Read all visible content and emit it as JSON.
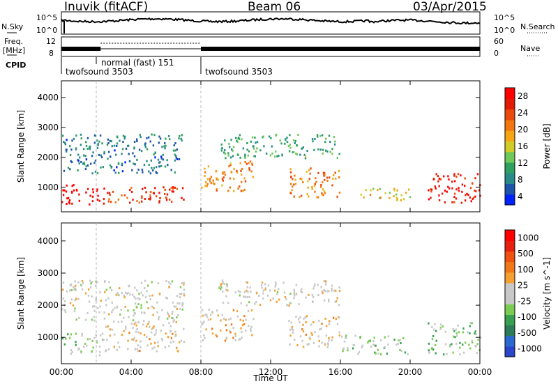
{
  "header": {
    "station": "Inuvik (fitACF)",
    "beam": "Beam 06",
    "date": "03/Apr/2015"
  },
  "params": {
    "nsky_label": "N.Sky",
    "nsearch_label": "N.Search",
    "nsky_ticks": [
      "10^5",
      "10^0"
    ],
    "nsearch_ticks": [
      "10^5",
      "10^0"
    ],
    "freq_label": "Freq.",
    "freq_unit": "[MHz]",
    "freq_ticks": [
      "12",
      "8"
    ],
    "nave_label": "Nave",
    "nave_ticks": [
      "60",
      "0"
    ],
    "cpid_label": "CPID",
    "cpid_segments": [
      {
        "name": "twofsound 3503",
        "start_hour": 0.0
      },
      {
        "name": "normal (fast) 151",
        "start_hour": 1.85
      },
      {
        "name": "twofsound 3503",
        "start_hour": 7.85
      }
    ]
  },
  "colors": {
    "power": [
      "#0022ff",
      "#1c55aa",
      "#2a8a8a",
      "#2ea060",
      "#6fc85a",
      "#d2cc2a",
      "#f6a515",
      "#f27710",
      "#ec4a0a",
      "#e31a08",
      "#ff0000"
    ],
    "velocity": [
      "#2a46c8",
      "#2a6ad0",
      "#2e7b5a",
      "#38a050",
      "#7acd52",
      "#c8c8c8",
      "#c8c8c8",
      "#f5a030",
      "#f07818",
      "#f05010",
      "#e82010",
      "#ff0000"
    ]
  },
  "chart_data": [
    {
      "type": "heatmap",
      "title": "Power",
      "ylabel": "Slant Range [km]",
      "xlabel": "",
      "x_unit": "hour UT",
      "xlim": [
        0,
        24
      ],
      "ylim": [
        180,
        4560
      ],
      "xticks": [
        "00:00",
        "04:00",
        "08:00",
        "12:00",
        "16:00",
        "20:00",
        "00:00"
      ],
      "yticks": [
        "1000",
        "2000",
        "3000",
        "4000"
      ],
      "colorbar": {
        "label": "Power [dB]",
        "range": [
          0,
          30
        ],
        "ticks": [
          "28",
          "24",
          "20",
          "16",
          "12",
          "8",
          "4"
        ]
      },
      "scatter_bands": [
        {
          "x": [
            0,
            2.5
          ],
          "y": [
            450,
            1150
          ],
          "value": 28
        },
        {
          "x": [
            2.5,
            7
          ],
          "y": [
            500,
            1100
          ],
          "value": 24
        },
        {
          "x": [
            8,
            11
          ],
          "y": [
            900,
            1900
          ],
          "value": 20
        },
        {
          "x": [
            13,
            16
          ],
          "y": [
            700,
            1700
          ],
          "value": 20
        },
        {
          "x": [
            17,
            20
          ],
          "y": [
            600,
            1000
          ],
          "value": 16
        },
        {
          "x": [
            21,
            24
          ],
          "y": [
            500,
            1500
          ],
          "value": 26
        },
        {
          "x": [
            0,
            7
          ],
          "y": [
            1500,
            2800
          ],
          "value": 6
        },
        {
          "x": [
            9,
            16
          ],
          "y": [
            2000,
            2800
          ],
          "value": 10
        }
      ]
    },
    {
      "type": "heatmap",
      "title": "Velocity",
      "ylabel": "Slant Range [km]",
      "xlabel": "Time UT",
      "x_unit": "hour UT",
      "xlim": [
        0,
        24
      ],
      "ylim": [
        180,
        4560
      ],
      "xticks": [
        "00:00",
        "04:00",
        "08:00",
        "12:00",
        "16:00",
        "20:00",
        "00:00"
      ],
      "yticks": [
        "1000",
        "2000",
        "3000",
        "4000"
      ],
      "colorbar": {
        "label": "Velocity [m s^-1]",
        "range": [
          -1200,
          1200
        ],
        "ticks": [
          "1000",
          "500",
          "100",
          "25",
          "-25",
          "-100",
          "-500",
          "-1000"
        ]
      },
      "scatter_bands": [
        {
          "x": [
            0,
            2.5
          ],
          "y": [
            450,
            1150
          ],
          "value": -200
        },
        {
          "x": [
            2.5,
            7
          ],
          "y": [
            600,
            1500
          ],
          "value": 150
        },
        {
          "x": [
            8,
            11
          ],
          "y": [
            900,
            1900
          ],
          "value": 200
        },
        {
          "x": [
            13,
            16
          ],
          "y": [
            700,
            1700
          ],
          "value": 150
        },
        {
          "x": [
            16,
            20
          ],
          "y": [
            500,
            1100
          ],
          "value": -200
        },
        {
          "x": [
            21,
            24
          ],
          "y": [
            500,
            1500
          ],
          "value": -300
        },
        {
          "x": [
            0,
            7
          ],
          "y": [
            1500,
            2800
          ],
          "value": 0
        },
        {
          "x": [
            9,
            16
          ],
          "y": [
            2000,
            2800
          ],
          "value": 60
        }
      ]
    }
  ]
}
